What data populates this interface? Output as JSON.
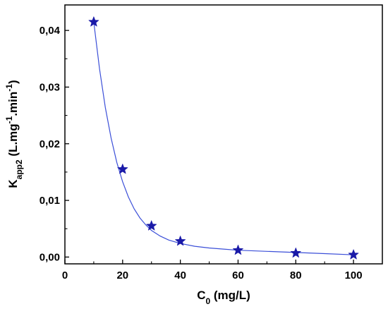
{
  "chart_data": {
    "type": "scatter",
    "xlabel": "C₀ (mg/L)",
    "ylabel": "K_app2 (L.mg⁻¹.min⁻¹)",
    "xlabel_parts": {
      "main": "C",
      "sub": "0",
      "rest": " (mg/L)"
    },
    "ylabel_parts": {
      "main": "K",
      "sub": "app2",
      "mid1": " (L.mg",
      "sup1": "-1",
      "mid2": ".min",
      "sup2": "-1",
      "end": ")"
    },
    "xlim": [
      0,
      110
    ],
    "ylim": [
      -0.0012,
      0.0445
    ],
    "xticks": [
      0,
      20,
      40,
      60,
      80,
      100
    ],
    "yticks": [
      0.0,
      0.01,
      0.02,
      0.03,
      0.04
    ],
    "ytick_labels": [
      "0,00",
      "0,01",
      "0,02",
      "0,03",
      "0,04"
    ],
    "grid": false,
    "series": [
      {
        "marker": "star",
        "color": "#1a1aa8",
        "x": [
          10,
          20,
          30,
          40,
          60,
          80,
          100
        ],
        "y": [
          0.0415,
          0.0155,
          0.0055,
          0.0028,
          0.0012,
          0.0007,
          0.0004
        ]
      }
    ],
    "fit_curve": {
      "color": "#3b4fd8",
      "x": [
        10,
        12,
        14,
        16,
        18,
        20,
        22,
        24,
        26,
        28,
        30,
        33,
        36,
        40,
        45,
        50,
        55,
        60,
        70,
        80,
        90,
        100
      ],
      "y": [
        0.0415,
        0.0332,
        0.0264,
        0.021,
        0.0167,
        0.0133,
        0.0106,
        0.0085,
        0.0069,
        0.0057,
        0.0047,
        0.0037,
        0.003,
        0.0024,
        0.0019,
        0.0016,
        0.0014,
        0.0012,
        0.001,
        0.0008,
        0.0006,
        0.0004
      ]
    }
  }
}
